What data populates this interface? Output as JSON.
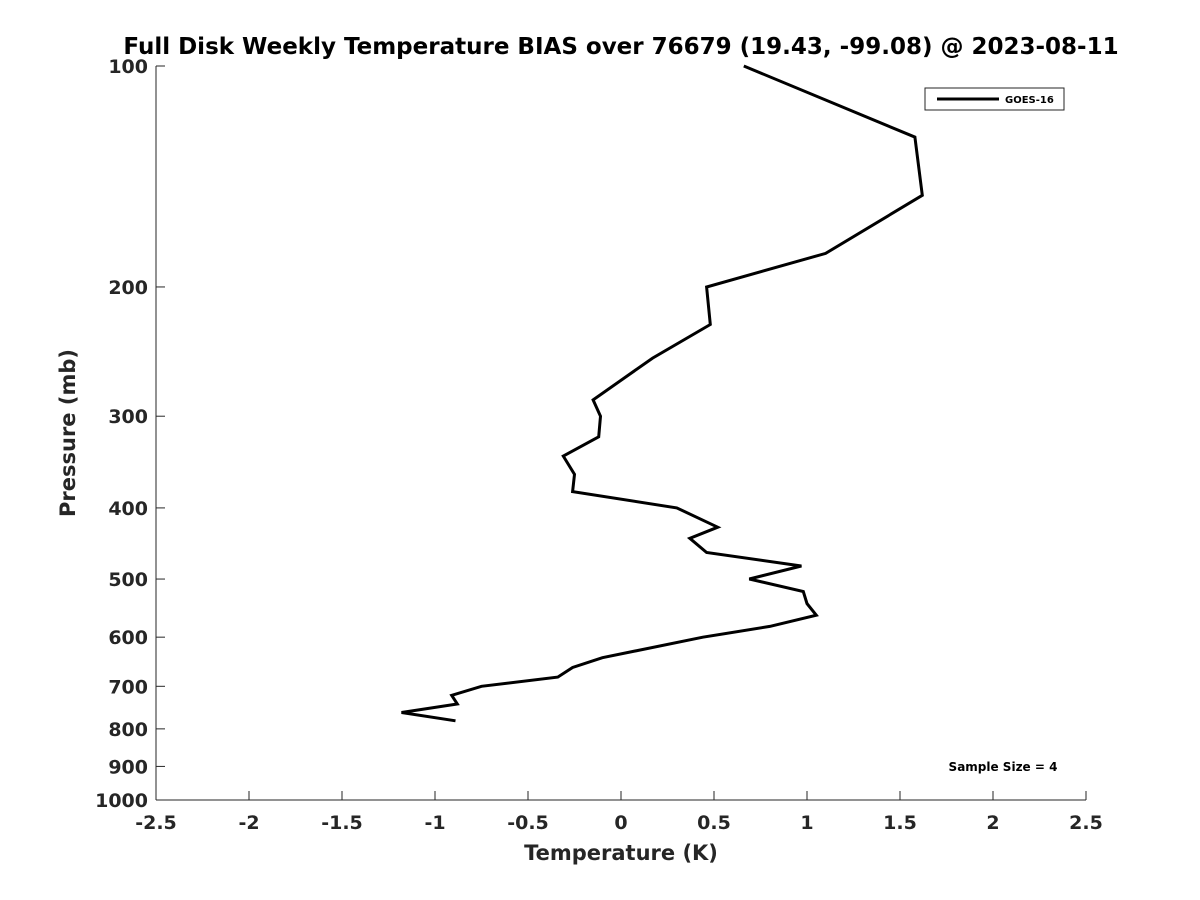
{
  "chart_data": {
    "type": "line",
    "title": "Full Disk Weekly Temperature BIAS over 76679 (19.43, -99.08) @ 2023-08-11",
    "xlabel": "Temperature (K)",
    "ylabel": "Pressure (mb)",
    "xlim": [
      -2.5,
      2.5
    ],
    "ylim": [
      1000,
      100
    ],
    "y_scale": "log",
    "y_reversed": true,
    "grid": false,
    "x_ticks": [
      -2.5,
      -2,
      -1.5,
      -1,
      -0.5,
      0,
      0.5,
      1,
      1.5,
      2,
      2.5
    ],
    "x_tick_labels": [
      "-2.5",
      "-2",
      "-1.5",
      "-1",
      "-0.5",
      "0",
      "0.5",
      "1",
      "1.5",
      "2",
      "2.5"
    ],
    "y_ticks": [
      100,
      200,
      300,
      400,
      500,
      600,
      700,
      800,
      900,
      1000
    ],
    "y_tick_labels": [
      "100",
      "200",
      "300",
      "400",
      "500",
      "600",
      "700",
      "800",
      "900",
      "1000"
    ],
    "legend_position": "top-right",
    "series": [
      {
        "name": "GOES-16",
        "color": "#000000",
        "points": [
          {
            "x": 0.66,
            "y": 100
          },
          {
            "x": 1.58,
            "y": 125
          },
          {
            "x": 1.62,
            "y": 150
          },
          {
            "x": 1.1,
            "y": 180
          },
          {
            "x": 0.46,
            "y": 200
          },
          {
            "x": 0.48,
            "y": 225
          },
          {
            "x": 0.17,
            "y": 250
          },
          {
            "x": -0.15,
            "y": 285
          },
          {
            "x": -0.11,
            "y": 300
          },
          {
            "x": -0.12,
            "y": 320
          },
          {
            "x": -0.31,
            "y": 340
          },
          {
            "x": -0.25,
            "y": 360
          },
          {
            "x": -0.26,
            "y": 380
          },
          {
            "x": 0.3,
            "y": 400
          },
          {
            "x": 0.52,
            "y": 425
          },
          {
            "x": 0.37,
            "y": 440
          },
          {
            "x": 0.46,
            "y": 460
          },
          {
            "x": 0.97,
            "y": 480
          },
          {
            "x": 0.69,
            "y": 500
          },
          {
            "x": 0.98,
            "y": 520
          },
          {
            "x": 1.0,
            "y": 540
          },
          {
            "x": 1.05,
            "y": 560
          },
          {
            "x": 0.8,
            "y": 580
          },
          {
            "x": 0.44,
            "y": 600
          },
          {
            "x": -0.1,
            "y": 640
          },
          {
            "x": -0.26,
            "y": 660
          },
          {
            "x": -0.34,
            "y": 680
          },
          {
            "x": -0.75,
            "y": 700
          },
          {
            "x": -0.91,
            "y": 720
          },
          {
            "x": -0.88,
            "y": 740
          },
          {
            "x": -1.18,
            "y": 760
          },
          {
            "x": -0.89,
            "y": 780
          }
        ]
      }
    ],
    "annotation": "Sample Size = 4"
  }
}
